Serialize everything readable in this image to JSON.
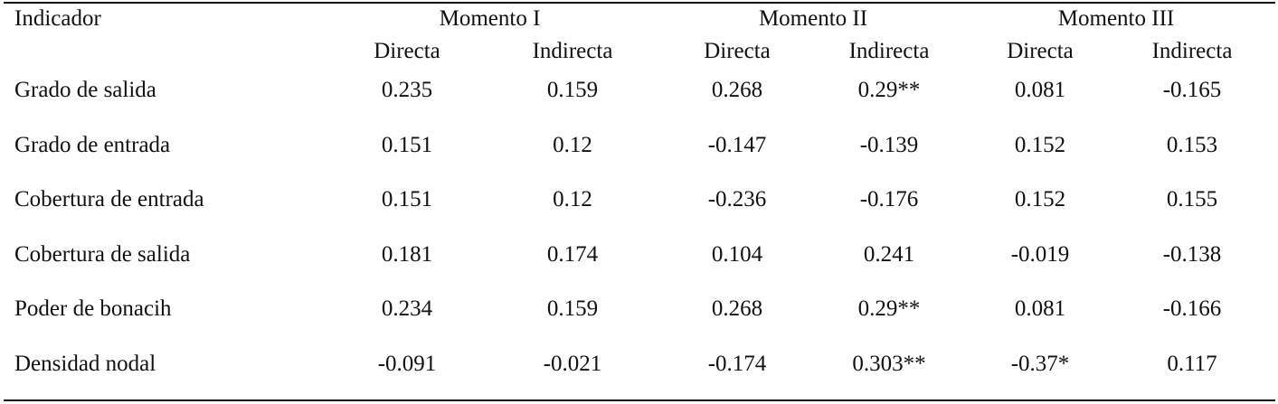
{
  "table": {
    "header": {
      "first": "Indicador",
      "groups": [
        "Momento I",
        "Momento II",
        "Momento III"
      ],
      "subheaders": [
        "Directa",
        "Indirecta",
        "Directa",
        "Indirecta",
        "Directa",
        "Indirecta"
      ]
    },
    "rows": [
      {
        "label": "Grado de salida",
        "values": [
          "0.235",
          "0.159",
          "0.268",
          "0.29**",
          "0.081",
          "-0.165"
        ]
      },
      {
        "label": "Grado de entrada",
        "values": [
          "0.151",
          "0.12",
          "-0.147",
          "-0.139",
          "0.152",
          "0.153"
        ]
      },
      {
        "label": "Cobertura de entrada",
        "values": [
          "0.151",
          "0.12",
          "-0.236",
          "-0.176",
          "0.152",
          "0.155"
        ]
      },
      {
        "label": "Cobertura de salida",
        "values": [
          "0.181",
          "0.174",
          "0.104",
          "0.241",
          "-0.019",
          "-0.138"
        ]
      },
      {
        "label": "Poder de bonacih",
        "values": [
          "0.234",
          "0.159",
          "0.268",
          "0.29**",
          "0.081",
          "-0.166"
        ]
      },
      {
        "label": "Densidad nodal",
        "values": [
          "-0.091",
          "-0.021",
          "-0.174",
          "0.303**",
          "-0.37*",
          "0.117"
        ]
      }
    ]
  }
}
